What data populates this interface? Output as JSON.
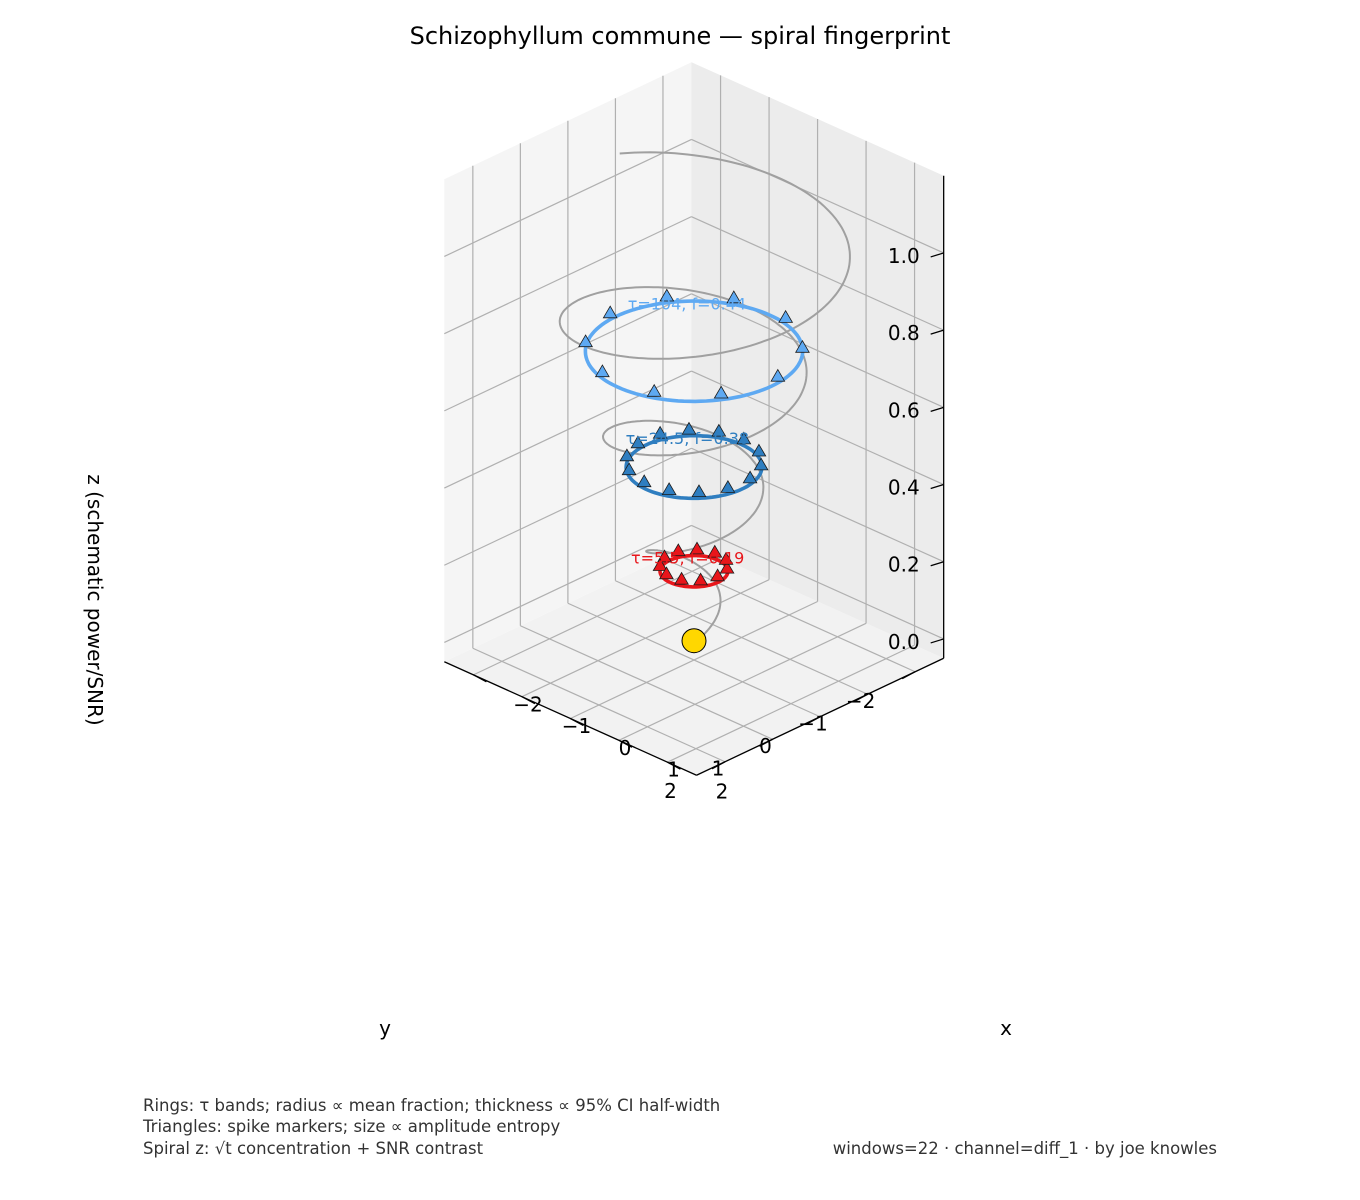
{
  "chart_data": {
    "type": "scatter",
    "projection": "3d",
    "title": "Schizophyllum commune — spiral fingerprint",
    "xlabel": "x",
    "ylabel": "y",
    "zlabel": "z (schematic power/SNR)",
    "xlim": [
      -2.6,
      2.6
    ],
    "ylim": [
      -2.6,
      2.6
    ],
    "zlim": [
      -0.05,
      1.2
    ],
    "x_ticks": [
      "−2",
      "−1",
      "0",
      "1",
      "2"
    ],
    "y_ticks": [
      "−2",
      "−1",
      "0",
      "1",
      "2"
    ],
    "z_ticks": [
      "0.0",
      "0.2",
      "0.4",
      "0.6",
      "0.8",
      "1.0"
    ],
    "grid": true,
    "spiral": {
      "color": "#a0a0a0",
      "z_range": [
        0.0,
        1.08
      ],
      "radius_range": [
        0.2,
        2.5
      ],
      "turns": 3.6
    },
    "origin_marker": {
      "x": 0,
      "y": 0,
      "z": 0,
      "color": "#ffd700"
    },
    "rings": [
      {
        "label": "τ=5.5, f=0.19",
        "tau": 5.5,
        "f": 0.19,
        "z": 0.18,
        "radius": 0.5,
        "color": "#e8161b",
        "marker_color": "#e8161b",
        "markers": 11
      },
      {
        "label": "τ=24.5, f=0.38",
        "tau": 24.5,
        "f": 0.38,
        "z": 0.45,
        "radius": 1.0,
        "color": "#2f7ec0",
        "marker_color": "#2f7ec0",
        "markers": 14
      },
      {
        "label": "τ=104, f=0.44",
        "tau": 104,
        "f": 0.44,
        "z": 0.75,
        "radius": 1.6,
        "color": "#5ea9f2",
        "marker_color": "#5ea9f2",
        "markers": 10
      }
    ]
  },
  "footer": {
    "line1": "Rings: τ bands; radius ∝ mean fraction; thickness ∝ 95% CI half-width",
    "line2": "Triangles: spike markers; size ∝ amplitude entropy",
    "line3": "Spiral z: √t concentration + SNR contrast",
    "right": "windows=22 · channel=diff_1 · by joe knowles"
  }
}
